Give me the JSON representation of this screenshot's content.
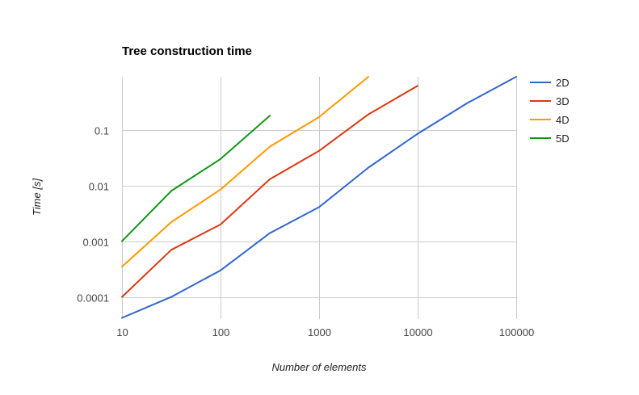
{
  "chart_data": {
    "type": "line",
    "title": "Tree construction time",
    "xlabel": "Number of elements",
    "ylabel": "Time [s]",
    "x_scale": "log",
    "y_scale": "log",
    "xlim": [
      10,
      100000
    ],
    "ylim": [
      4e-05,
      0.9
    ],
    "x_ticks": [
      "10",
      "100",
      "1000",
      "10000",
      "100000"
    ],
    "y_ticks": [
      "0.0001",
      "0.001",
      "0.01",
      "0.1"
    ],
    "grid": true,
    "legend_position": "right",
    "series": [
      {
        "name": "2D",
        "color": "#3366cc",
        "x": [
          10,
          31.6,
          100,
          316,
          1000,
          3162,
          10000,
          31623,
          100000
        ],
        "y": [
          4.2e-05,
          0.0001,
          0.0003,
          0.0014,
          0.0041,
          0.021,
          0.085,
          0.3,
          0.9
        ]
      },
      {
        "name": "3D",
        "color": "#dc3912",
        "x": [
          10,
          31.6,
          100,
          316,
          1000,
          3162,
          10000
        ],
        "y": [
          0.0001,
          0.0007,
          0.002,
          0.013,
          0.042,
          0.19,
          0.62
        ]
      },
      {
        "name": "4D",
        "color": "#ff9900",
        "x": [
          10,
          31.6,
          100,
          316,
          1000,
          3162
        ],
        "y": [
          0.00035,
          0.0022,
          0.0085,
          0.05,
          0.17,
          0.9
        ]
      },
      {
        "name": "5D",
        "color": "#109618",
        "x": [
          10,
          31.6,
          100,
          316
        ],
        "y": [
          0.001,
          0.008,
          0.03,
          0.18
        ]
      }
    ]
  }
}
